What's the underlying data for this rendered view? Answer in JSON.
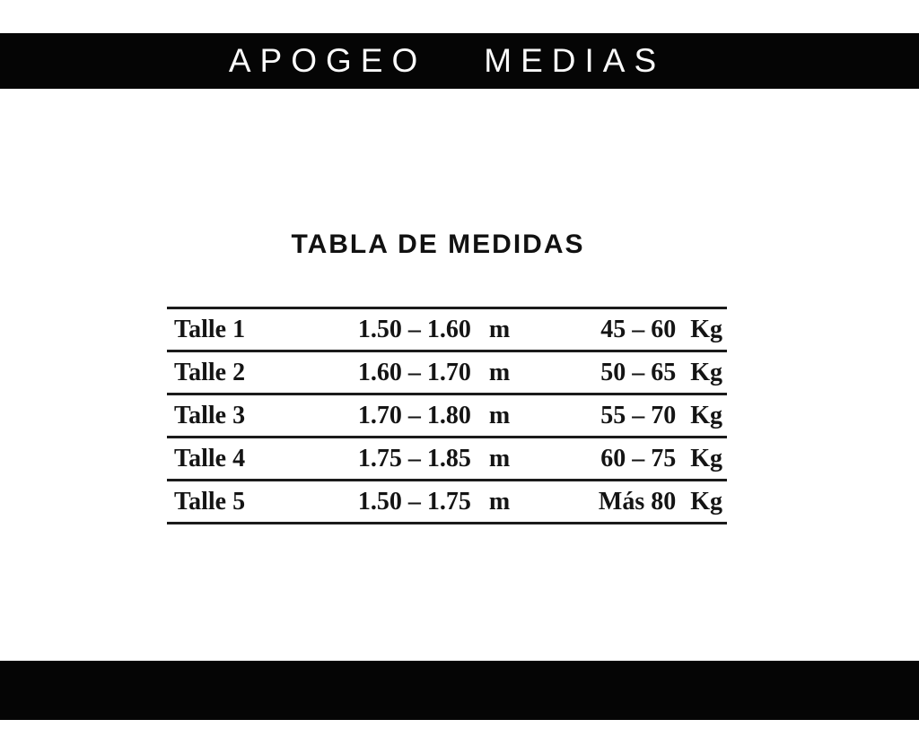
{
  "banner": {
    "word1": "APOGEO",
    "word2": "MEDIAS"
  },
  "title": "TABLA DE MEDIDAS",
  "size_table": {
    "rows": [
      {
        "talle": "Talle 1",
        "altura": "1.50 – 1.60",
        "altura_unidad": "m",
        "peso": "45 – 60",
        "peso_unidad": "Kg"
      },
      {
        "talle": "Talle 2",
        "altura": "1.60 – 1.70",
        "altura_unidad": "m",
        "peso": "50 – 65",
        "peso_unidad": "Kg"
      },
      {
        "talle": "Talle 3",
        "altura": "1.70 – 1.80",
        "altura_unidad": "m",
        "peso": "55 – 70",
        "peso_unidad": "Kg"
      },
      {
        "talle": "Talle 4",
        "altura": "1.75 – 1.85",
        "altura_unidad": "m",
        "peso": "60 – 75",
        "peso_unidad": "Kg"
      },
      {
        "talle": "Talle 5",
        "altura": "1.50 – 1.75",
        "altura_unidad": "m",
        "peso": "Más 80",
        "peso_unidad": "Kg"
      }
    ]
  },
  "colors": {
    "banner_background": "#050505",
    "banner_text": "#fafafa",
    "body_background": "#ffffff",
    "table_rule": "#1b1b1b",
    "text": "#141414"
  }
}
